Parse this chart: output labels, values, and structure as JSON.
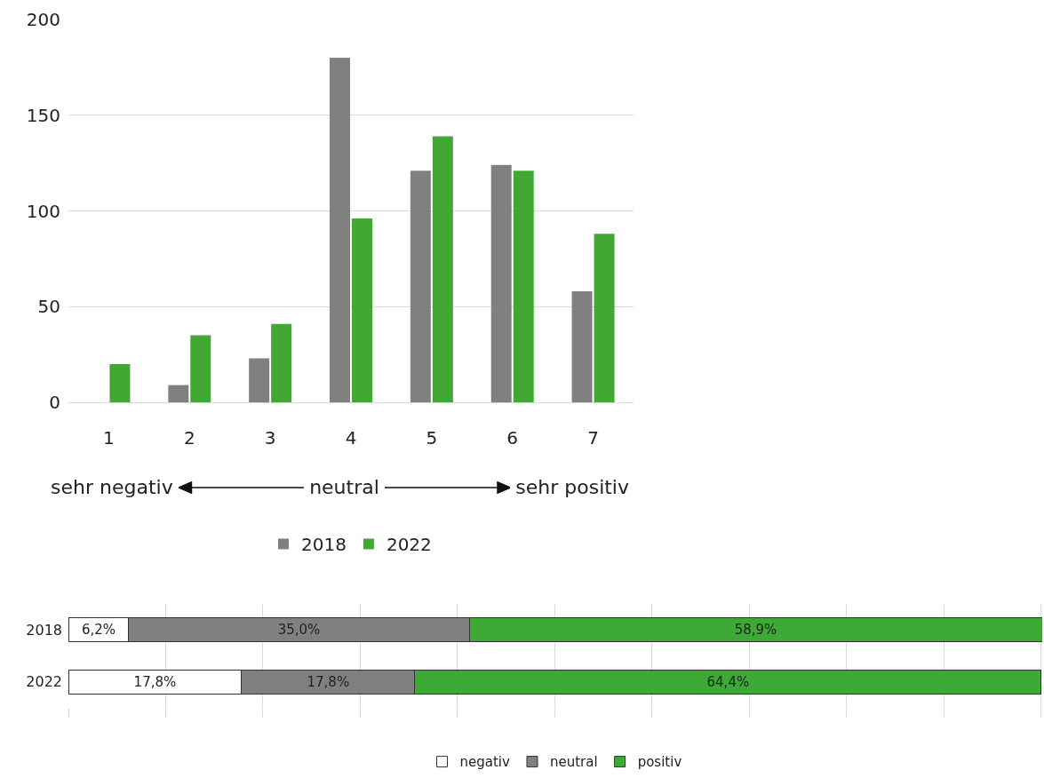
{
  "chart_data": [
    {
      "type": "bar",
      "categories": [
        "1",
        "2",
        "3",
        "4",
        "5",
        "6",
        "7"
      ],
      "series": [
        {
          "name": "2018",
          "color": "#808080",
          "values": [
            0,
            9,
            23,
            180,
            121,
            124,
            58
          ]
        },
        {
          "name": "2022",
          "color": "#41a834",
          "values": [
            20,
            35,
            41,
            96,
            139,
            121,
            88
          ]
        }
      ],
      "ylim": [
        0,
        200
      ],
      "yticks": [
        0,
        50,
        100,
        150,
        200
      ],
      "grid": "y",
      "legend": "bottom",
      "annotations": [
        "sehr negativ",
        "neutral",
        "sehr positiv"
      ]
    },
    {
      "type": "bar",
      "orientation": "horizontal",
      "stacked": true,
      "categories": [
        "2018",
        "2022"
      ],
      "series": [
        {
          "name": "negativ",
          "color": "#ffffff",
          "values": [
            6.2,
            17.8
          ],
          "value_labels": [
            "6,2%",
            "17,8%"
          ]
        },
        {
          "name": "neutral",
          "color": "#808080",
          "values": [
            35.0,
            17.8
          ],
          "value_labels": [
            "35,0%",
            "17,8%"
          ]
        },
        {
          "name": "positiv",
          "color": "#3daa35",
          "values": [
            58.9,
            64.4
          ],
          "value_labels": [
            "58,9%",
            "64,4%"
          ]
        }
      ],
      "xlim": [
        0,
        100.1
      ],
      "xticks": [
        {
          "value": 0,
          "label": null
        },
        {
          "value": 10,
          "label": null
        },
        {
          "value": 20,
          "label": null
        },
        {
          "value": 30,
          "label": null
        },
        {
          "value": 40,
          "label": null
        },
        {
          "value": 50,
          "label": null
        },
        {
          "value": 60,
          "label": null
        },
        {
          "value": 70,
          "label": null
        },
        {
          "value": 80,
          "label": null
        },
        {
          "value": 90,
          "label": null
        },
        {
          "value": 100,
          "label": null
        }
      ],
      "grid": "x",
      "legend": "bottom",
      "tick_labels": "y"
    }
  ]
}
